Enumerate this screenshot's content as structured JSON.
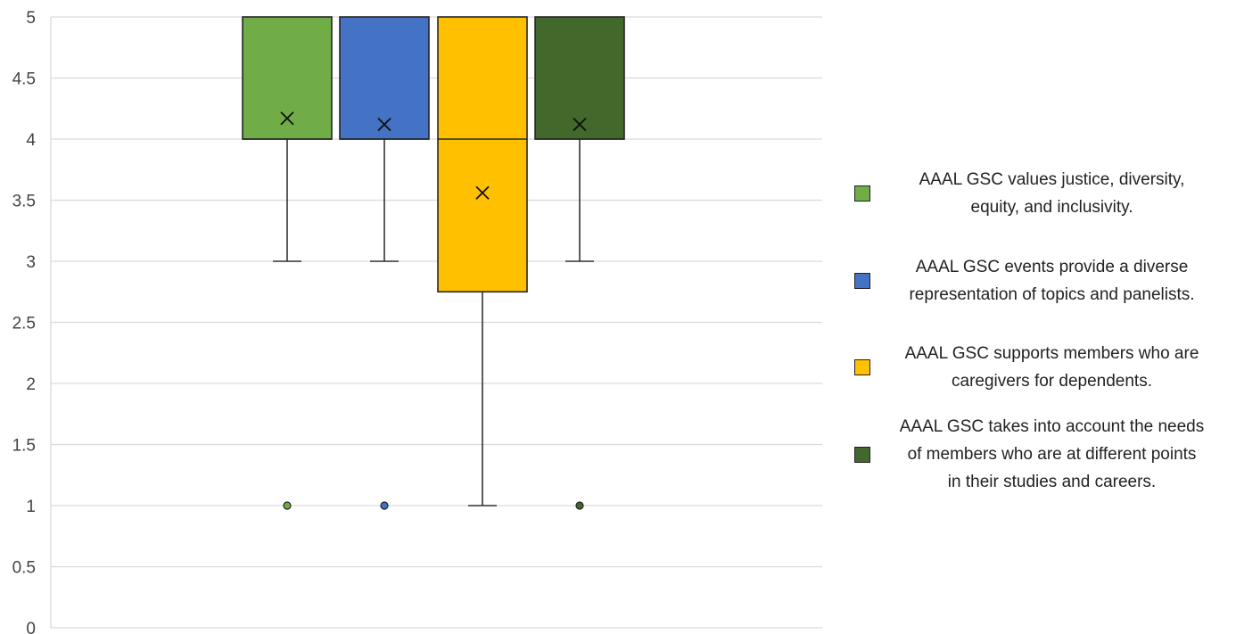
{
  "chart_data": {
    "type": "box",
    "title": "",
    "xlabel": "",
    "ylabel": "",
    "ylim": [
      0,
      5
    ],
    "yticks": [
      "0",
      "0.5",
      "1",
      "1.5",
      "2",
      "2.5",
      "3",
      "3.5",
      "4",
      "4.5",
      "5"
    ],
    "grid": true,
    "legend_position": "right",
    "series": [
      {
        "name": "AAAL GSC values justice, diversity, equity, and inclusivity.",
        "color": "#70ad47",
        "min": 3,
        "q1": 4,
        "median": 4,
        "q3": 5,
        "max": 5,
        "mean": 4.17,
        "outliers": [
          1
        ]
      },
      {
        "name": "AAAL GSC events provide a diverse representation of topics and panelists.",
        "color": "#4472c4",
        "min": 3,
        "q1": 4,
        "median": 4,
        "q3": 5,
        "max": 5,
        "mean": 4.12,
        "outliers": [
          1
        ]
      },
      {
        "name": "AAAL GSC supports members who are caregivers for dependents.",
        "color": "#ffc000",
        "min": 1,
        "q1": 2.75,
        "median": 4,
        "q3": 5,
        "max": 5,
        "mean": 3.56,
        "outliers": []
      },
      {
        "name": "AAAL GSC takes into account the needs of members who are at different points in their studies and careers.",
        "color": "#43682b",
        "min": 3,
        "q1": 4,
        "median": 4,
        "q3": 5,
        "max": 5,
        "mean": 4.12,
        "outliers": [
          1
        ]
      }
    ]
  },
  "legend": {
    "items": [
      {
        "lines": [
          "AAAL GSC values justice, diversity,",
          "equity, and inclusivity."
        ]
      },
      {
        "lines": [
          "AAAL GSC events provide a diverse",
          "representation of topics and panelists."
        ]
      },
      {
        "lines": [
          "AAAL GSC supports members who are",
          "caregivers for dependents."
        ]
      },
      {
        "lines": [
          "AAAL GSC takes into account the needs",
          "of members who are at different points",
          "in their studies and careers."
        ]
      }
    ]
  }
}
